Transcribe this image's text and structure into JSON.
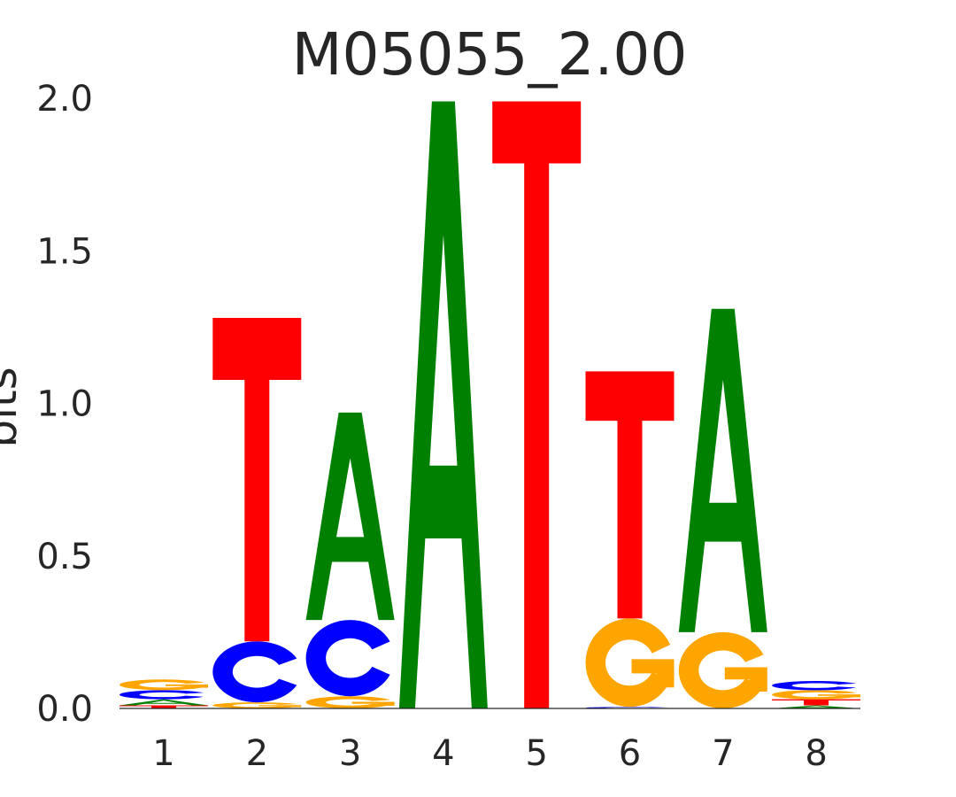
{
  "chart_data": {
    "type": "sequence-logo",
    "title": "M05055_2.00",
    "xlabel": "",
    "ylabel": "bits",
    "ylim": [
      0,
      2
    ],
    "yticks": [
      "0.0",
      "0.5",
      "1.0",
      "1.5",
      "2.0"
    ],
    "positions": [
      "1",
      "2",
      "3",
      "4",
      "5",
      "6",
      "7",
      "8"
    ],
    "colors": {
      "A": "#008000",
      "C": "#0000ff",
      "G": "#ffa500",
      "T": "#ff0000"
    },
    "grid": false,
    "stacks": [
      [
        {
          "letter": "T",
          "bits": 0.01
        },
        {
          "letter": "A",
          "bits": 0.02
        },
        {
          "letter": "C",
          "bits": 0.03
        },
        {
          "letter": "G",
          "bits": 0.035
        }
      ],
      [
        {
          "letter": "G",
          "bits": 0.02
        },
        {
          "letter": "C",
          "bits": 0.2
        },
        {
          "letter": "T",
          "bits": 1.06
        }
      ],
      [
        {
          "letter": "G",
          "bits": 0.04
        },
        {
          "letter": "C",
          "bits": 0.25
        },
        {
          "letter": "A",
          "bits": 0.68
        }
      ],
      [
        {
          "letter": "A",
          "bits": 1.99
        }
      ],
      [
        {
          "letter": "T",
          "bits": 1.99
        }
      ],
      [
        {
          "letter": "C",
          "bits": 0.005
        },
        {
          "letter": "G",
          "bits": 0.29
        },
        {
          "letter": "T",
          "bits": 0.81
        }
      ],
      [
        {
          "letter": "G",
          "bits": 0.25
        },
        {
          "letter": "A",
          "bits": 1.06
        }
      ],
      [
        {
          "letter": "A",
          "bits": 0.01
        },
        {
          "letter": "T",
          "bits": 0.02
        },
        {
          "letter": "G",
          "bits": 0.03
        },
        {
          "letter": "C",
          "bits": 0.03
        }
      ]
    ]
  }
}
